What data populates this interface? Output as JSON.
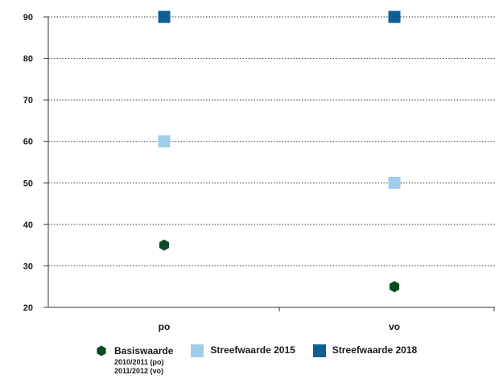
{
  "chart_data": {
    "type": "scatter",
    "categories": [
      "po",
      "vo"
    ],
    "yticks": [
      20,
      30,
      40,
      50,
      60,
      70,
      80,
      90
    ],
    "ylim": [
      20,
      90
    ],
    "grid": true,
    "legend_position": "bottom",
    "series": [
      {
        "name": "Basiswaarde",
        "note_lines": [
          "2010/2011 (po)",
          "2011/2012 (vo)"
        ],
        "marker": "hexagon",
        "color": "#0b4a23",
        "values": [
          35,
          25
        ]
      },
      {
        "name": "Streefwaarde 2015",
        "marker": "square",
        "color": "#9fcdea",
        "values": [
          60,
          50
        ]
      },
      {
        "name": "Streefwaarde 2018",
        "marker": "square",
        "color": "#0f5f96",
        "values": [
          90,
          90
        ]
      }
    ]
  }
}
